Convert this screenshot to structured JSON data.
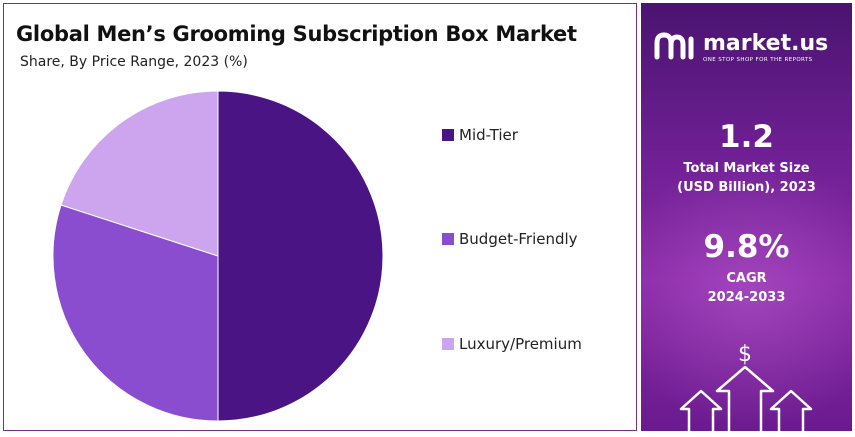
{
  "header": {
    "title": "Global Men’s Grooming Subscription Box Market",
    "subtitle": "Share, By Price Range, 2023 (%)"
  },
  "chart_data": {
    "type": "pie",
    "title": "Global Men’s Grooming Subscription Box Market",
    "subtitle": "Share, By Price Range, 2023 (%)",
    "slices": [
      {
        "label": "Mid-Tier",
        "value": 50,
        "color": "#4a1484"
      },
      {
        "label": "Budget-Friendly",
        "value": 30,
        "color": "#8a4dcf"
      },
      {
        "label": "Luxury/Premium",
        "value": 20,
        "color": "#cda5ee"
      }
    ],
    "legend": "right"
  },
  "sidebar": {
    "brand": "market.us",
    "tagline": "ONE STOP SHOP FOR THE REPORTS",
    "market_size_value": "1.2",
    "market_size_label_1": "Total Market Size",
    "market_size_label_2": "(USD Billion), 2023",
    "cagr_value": "9.8%",
    "cagr_label": "CAGR",
    "cagr_period": "2024-2033",
    "dollar_symbol": "$"
  },
  "colors": {
    "border": "#7a2f86",
    "panel_top": "#4a1470",
    "panel_mid": "#8a2aa7"
  }
}
